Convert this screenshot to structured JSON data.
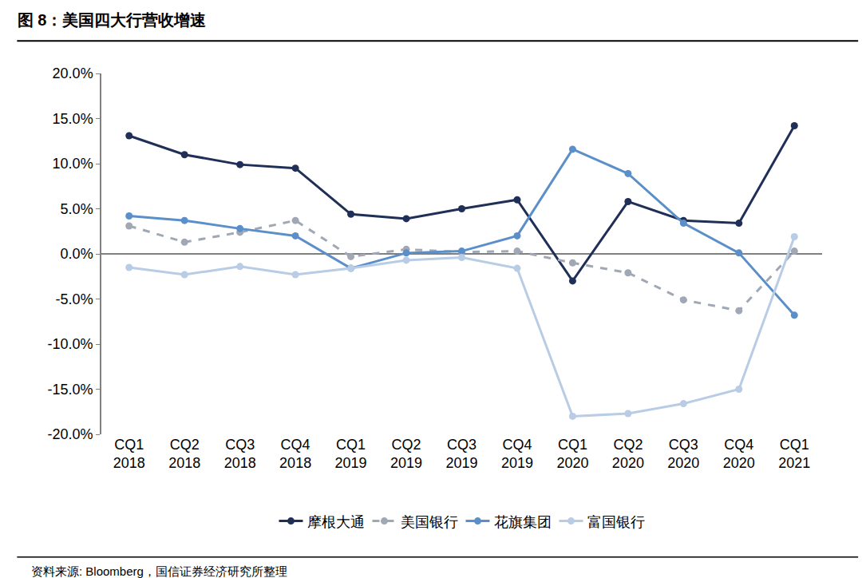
{
  "chart_data": {
    "type": "line",
    "title": "图 8：美国四大行营收增速",
    "annotations": [
      "资料来源: Bloomberg，国信证券经济研究所整理"
    ],
    "categories": [
      "CQ1 2018",
      "CQ2 2018",
      "CQ3 2018",
      "CQ4 2018",
      "CQ1 2019",
      "CQ2 2019",
      "CQ3 2019",
      "CQ4 2019",
      "CQ1 2020",
      "CQ2 2020",
      "CQ3 2020",
      "CQ4 2020",
      "CQ1 2021"
    ],
    "series": [
      {
        "name": "摩根大通",
        "color": "#1f2f57",
        "line_style": "solid",
        "values": [
          13.1,
          11.0,
          9.9,
          9.5,
          4.4,
          3.9,
          5.0,
          6.0,
          -3.0,
          5.8,
          3.7,
          3.4,
          14.2
        ]
      },
      {
        "name": "美国银行",
        "color": "#a0a8b5",
        "line_style": "dash",
        "values": [
          3.1,
          1.3,
          2.4,
          3.7,
          -0.3,
          0.5,
          0.2,
          0.3,
          -1.0,
          -2.1,
          -5.1,
          -6.3,
          0.3
        ]
      },
      {
        "name": "花旗集团",
        "color": "#5b8fc9",
        "line_style": "solid",
        "values": [
          4.2,
          3.7,
          2.8,
          2.0,
          -1.6,
          0.1,
          0.3,
          2.0,
          11.6,
          8.9,
          3.4,
          0.1,
          -6.8
        ]
      },
      {
        "name": "富国银行",
        "color": "#b8cce6",
        "line_style": "solid",
        "values": [
          -1.5,
          -2.3,
          -1.4,
          -2.3,
          -1.6,
          -0.7,
          -0.4,
          -1.6,
          -18.0,
          -17.7,
          -16.6,
          -15.0,
          1.9
        ]
      }
    ],
    "ylim": [
      -20,
      20
    ],
    "yticks": [
      {
        "value": -20,
        "label": "-20.0%"
      },
      {
        "value": -15,
        "label": "-15.0%"
      },
      {
        "value": -10,
        "label": "-10.0%"
      },
      {
        "value": -5,
        "label": "-5.0%"
      },
      {
        "value": 0,
        "label": "0.0%"
      },
      {
        "value": 5,
        "label": "5.0%"
      },
      {
        "value": 10,
        "label": "10.0%"
      },
      {
        "value": 15,
        "label": "15.0%"
      },
      {
        "value": 20,
        "label": "20.0%"
      }
    ],
    "grid": false,
    "legend": "bottom",
    "marker": "circle"
  }
}
